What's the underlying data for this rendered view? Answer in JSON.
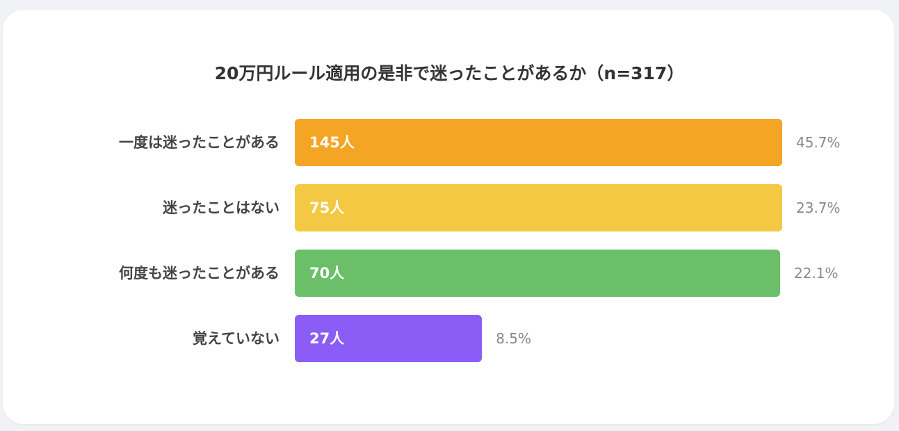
{
  "chart_data": {
    "type": "bar",
    "orientation": "horizontal",
    "title": "20万円ルール適用の是非で迷ったことがあるか（n=317）",
    "categories": [
      "一度は迷ったことがある",
      "迷ったことはない",
      "何度も迷ったことがある",
      "覚えていない"
    ],
    "values": [
      145,
      75,
      70,
      27
    ],
    "value_labels": [
      "145人",
      "75人",
      "70人",
      "27人"
    ],
    "percent_labels": [
      "45.7%",
      "23.7%",
      "22.1%",
      "8.5%"
    ],
    "colors": [
      "#F4A523",
      "#F4C842",
      "#6BBF68",
      "#8B5CF6"
    ],
    "grid": false
  }
}
